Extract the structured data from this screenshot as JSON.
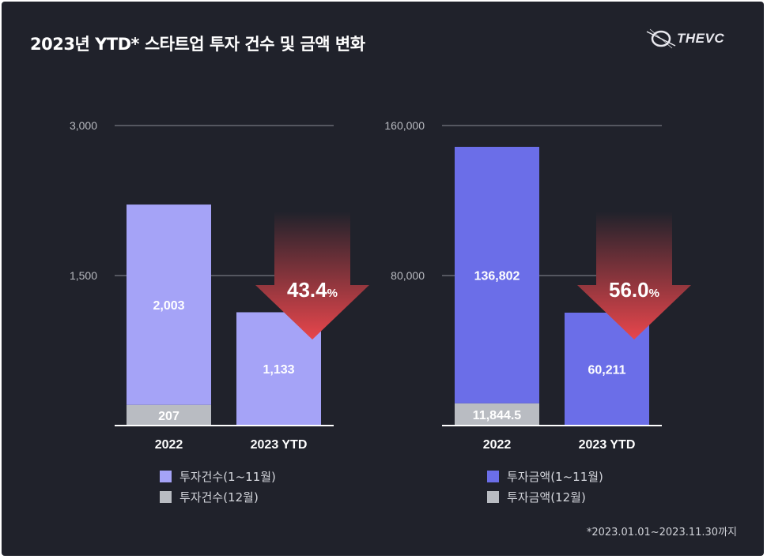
{
  "title": "2023년 YTD* 스타트업 투자 건수 및 금액 변화",
  "logo": {
    "text": "THEVC"
  },
  "footnote": "*2023.01.01~2023.11.30까지",
  "colors": {
    "background": "#20222b",
    "count_main": "#a5a3f7",
    "amount_main": "#6b6ee8",
    "december": "#b9bcc2",
    "arrow_top": "#20222b",
    "arrow_bottom": "#e8464c",
    "grid": "#8a8c94"
  },
  "chart_data": [
    {
      "type": "bar",
      "stacked": true,
      "categories": [
        "2022",
        "2023 YTD"
      ],
      "ylim": [
        0,
        3000
      ],
      "yticks": [
        1500,
        3000
      ],
      "ytick_labels": [
        "1,500",
        "3,000"
      ],
      "series": [
        {
          "name": "투자건수(1~11월)",
          "values": [
            2003,
            1133
          ],
          "labels": [
            "2,003",
            "1,133"
          ],
          "color": "#a5a3f7"
        },
        {
          "name": "투자건수(12월)",
          "values": [
            207,
            null
          ],
          "labels": [
            "207",
            ""
          ],
          "color": "#b9bcc2"
        }
      ],
      "annotation": {
        "number": "43.4",
        "unit": "%",
        "direction": "down"
      }
    },
    {
      "type": "bar",
      "stacked": true,
      "categories": [
        "2022",
        "2023 YTD"
      ],
      "ylim": [
        0,
        160000
      ],
      "yticks": [
        80000,
        160000
      ],
      "ytick_labels": [
        "80,000",
        "160,000"
      ],
      "series": [
        {
          "name": "투자금액(1~11월)",
          "values": [
            136802,
            60211
          ],
          "labels": [
            "136,802",
            "60,211"
          ],
          "color": "#6b6ee8"
        },
        {
          "name": "투자금액(12월)",
          "values": [
            11844.5,
            null
          ],
          "labels": [
            "11,844.5",
            ""
          ],
          "color": "#b9bcc2"
        }
      ],
      "annotation": {
        "number": "56.0",
        "unit": "%",
        "direction": "down"
      }
    }
  ]
}
